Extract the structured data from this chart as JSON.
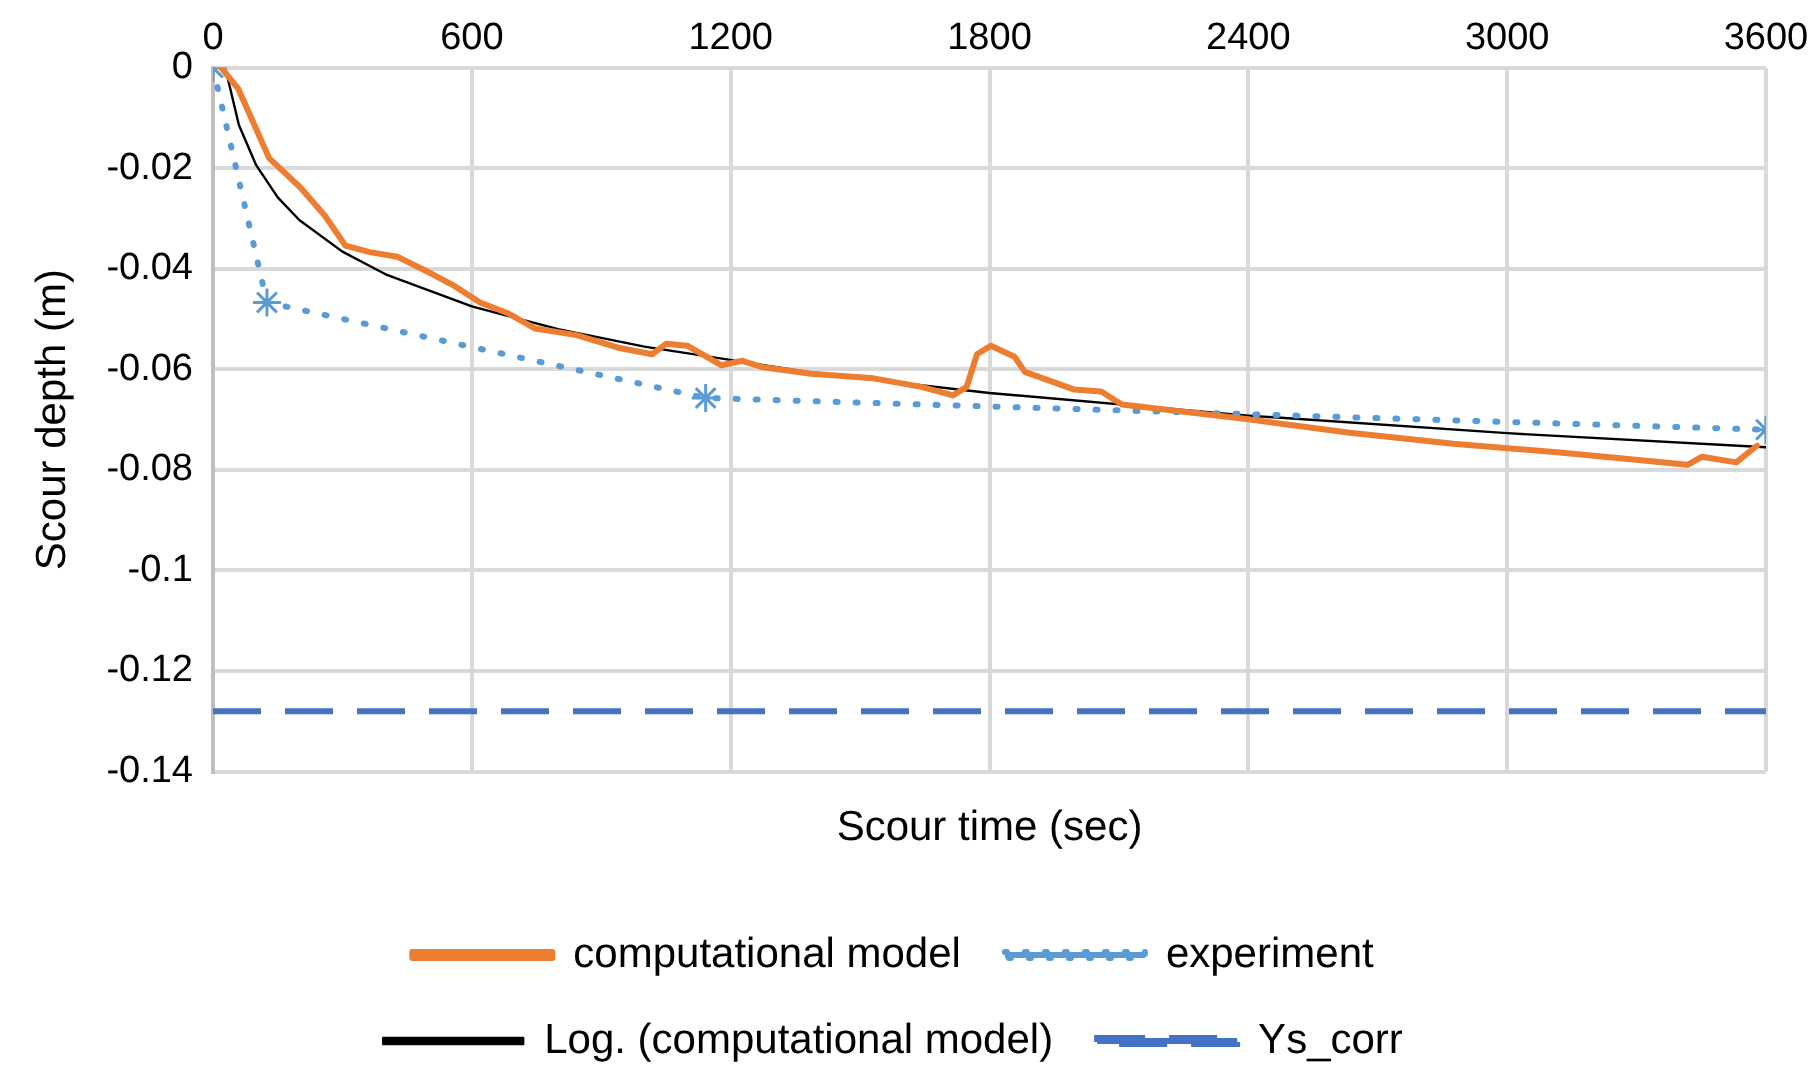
{
  "chart_data": {
    "type": "line",
    "xlabel": "Scour time (sec)",
    "ylabel": "Scour depth (m)",
    "xlim": [
      0,
      3600
    ],
    "xticks": [
      0,
      600,
      1200,
      1800,
      2400,
      3000,
      3600
    ],
    "ylim": [
      -0.14,
      0
    ],
    "yticks": [
      0,
      -0.02,
      -0.04,
      -0.06,
      -0.08,
      -0.1,
      -0.12,
      -0.14
    ],
    "grid": true,
    "legend": "bottom",
    "series": [
      {
        "name": "computational model",
        "color": "#ed7d31",
        "line_style": "solid",
        "marker": "none",
        "x": [
          19,
          59,
          130,
          202,
          259,
          307,
          363,
          427,
          507,
          555,
          619,
          682,
          747,
          843,
          939,
          1018,
          1051,
          1099,
          1179,
          1227,
          1275,
          1387,
          1531,
          1642,
          1715,
          1747,
          1771,
          1803,
          1858,
          1882,
          1995,
          2059,
          2107,
          2395,
          2635,
          2875,
          3115,
          3274,
          3418,
          3451,
          3531,
          3579
        ],
        "values": [
          0,
          -0.0043,
          -0.018,
          -0.0238,
          -0.0294,
          -0.0354,
          -0.0367,
          -0.0376,
          -0.041,
          -0.0432,
          -0.0467,
          -0.0488,
          -0.0519,
          -0.0532,
          -0.0557,
          -0.057,
          -0.0549,
          -0.0553,
          -0.0592,
          -0.0583,
          -0.0596,
          -0.0609,
          -0.0618,
          -0.0635,
          -0.0652,
          -0.0635,
          -0.057,
          -0.0553,
          -0.0575,
          -0.0605,
          -0.064,
          -0.0644,
          -0.067,
          -0.0699,
          -0.0726,
          -0.0748,
          -0.0765,
          -0.0778,
          -0.079,
          -0.0774,
          -0.0785,
          -0.0752
        ]
      },
      {
        "name": "experiment",
        "color": "#5b9bd5",
        "line_style": "dotted",
        "marker": "cross",
        "x": [
          0,
          125,
          1142,
          3600
        ],
        "values": [
          0,
          -0.0467,
          -0.0657,
          -0.072
        ]
      },
      {
        "name": "Log. (computational model)",
        "color": "#000000",
        "line_style": "solid",
        "marker": "none",
        "x": [
          30,
          60,
          100,
          150,
          200,
          300,
          400,
          600,
          800,
          1000,
          1400,
          1800,
          2400,
          3000,
          3600
        ],
        "values": [
          -0.0006,
          -0.0114,
          -0.0194,
          -0.0258,
          -0.0303,
          -0.0366,
          -0.0411,
          -0.0475,
          -0.052,
          -0.0555,
          -0.0608,
          -0.0647,
          -0.0692,
          -0.0727,
          -0.0755
        ]
      }
    ],
    "ref_lines": [
      {
        "axis": "y",
        "value": -0.128,
        "label": "Ys_corr",
        "color": "#4472c4",
        "line_style": "dashed"
      }
    ]
  }
}
